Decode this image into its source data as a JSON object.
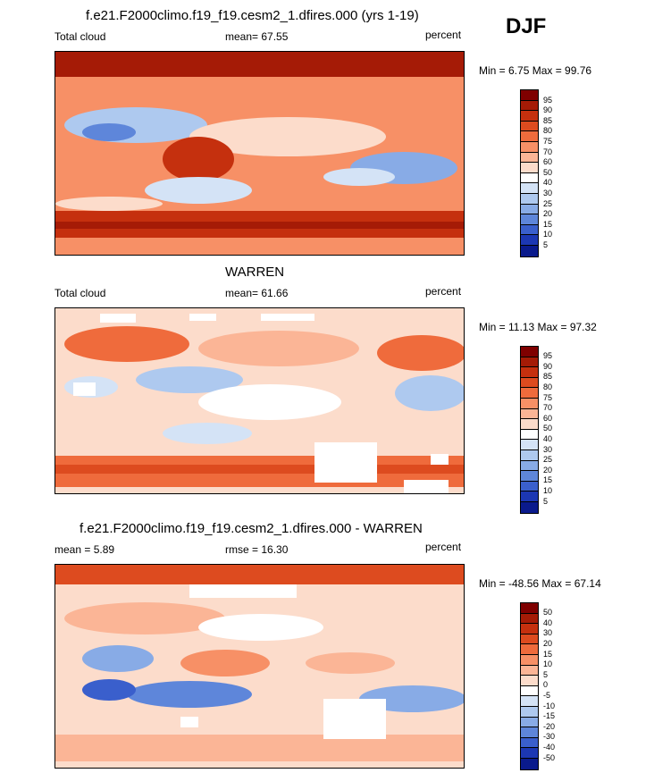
{
  "season": "DJF",
  "panels": [
    {
      "title": "f.e21.F2000climo.f19_f19.cesm2_1.dfires.000 (yrs 1-19)",
      "left_label": "Total cloud",
      "mid_label": "mean=  67.55",
      "right_label": "percent",
      "minmax": "Min =   6.75 Max =  99.76",
      "colorbar_labels": [
        "95",
        "90",
        "85",
        "80",
        "75",
        "70",
        "60",
        "50",
        "40",
        "30",
        "25",
        "20",
        "15",
        "10",
        "5"
      ]
    },
    {
      "title": "WARREN",
      "left_label": "Total cloud",
      "mid_label": "mean=  61.66",
      "right_label": "percent",
      "minmax": "Min =  11.13 Max =  97.32",
      "colorbar_labels": [
        "95",
        "90",
        "85",
        "80",
        "75",
        "70",
        "60",
        "50",
        "40",
        "30",
        "25",
        "20",
        "15",
        "10",
        "5"
      ]
    },
    {
      "title": "f.e21.F2000climo.f19_f19.cesm2_1.dfires.000 - WARREN",
      "left_label": "mean =   5.89",
      "mid_label": "rmse =  16.30",
      "right_label": "percent",
      "minmax": "Min = -48.56 Max =  67.14",
      "colorbar_labels": [
        "50",
        "40",
        "30",
        "20",
        "15",
        "10",
        "5",
        "0",
        "-5",
        "-10",
        "-15",
        "-20",
        "-30",
        "-40",
        "-50"
      ]
    }
  ],
  "colors": {
    "scale": [
      "#7f0000",
      "#a51b06",
      "#c5300e",
      "#dd4b1f",
      "#ef6b3c",
      "#f79066",
      "#fbb596",
      "#fcdccb",
      "#ffffff",
      "#d4e3f6",
      "#aec9ef",
      "#88abe6",
      "#5e86da",
      "#3a5fcc",
      "#1c37b3",
      "#0a1a8c"
    ]
  }
}
